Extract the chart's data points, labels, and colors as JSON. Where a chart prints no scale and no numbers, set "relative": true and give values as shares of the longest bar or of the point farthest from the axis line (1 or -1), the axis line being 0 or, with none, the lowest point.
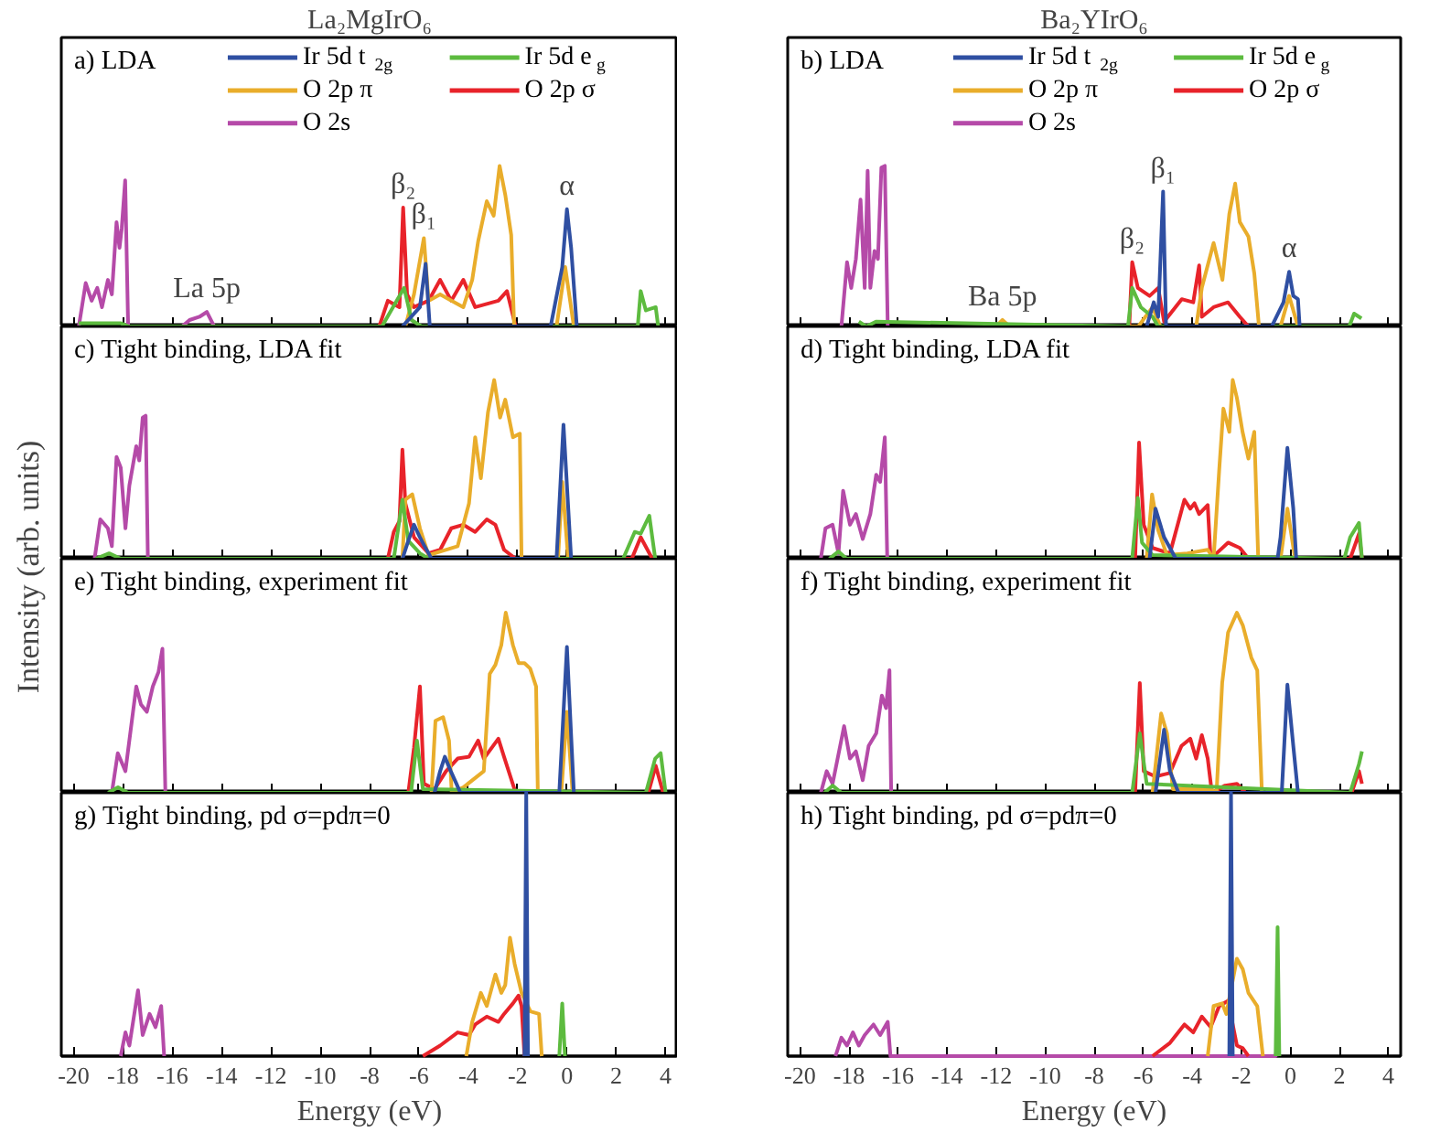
{
  "chart_data": [
    {
      "type": "line",
      "title": "La₂MgIrO₆",
      "subtitle": "a) LDA",
      "relative": true,
      "xlim": [
        -20.5,
        4.5
      ],
      "xticks": [
        -20,
        -18,
        -16,
        -14,
        -12,
        -10,
        -8,
        -6,
        -4,
        -2,
        0,
        2,
        4
      ],
      "tick_labels": false,
      "legend": "top",
      "annotations": [
        {
          "text": "β₂",
          "x": -6.64,
          "y": 0.74
        },
        {
          "text": "β₁",
          "x": -5.8,
          "y": 0.55
        },
        {
          "text": "α",
          "x": 0.0,
          "y": 0.73
        },
        {
          "text": "La 5p",
          "x": -14.6,
          "y": 0.09
        }
      ],
      "series": [
        {
          "name": "Ir 5d t$_{2g}$",
          "color": "#2f4fa2",
          "x": [
            -6.67,
            -5.96,
            -5.73,
            -5.56,
            -0.66,
            -0.19,
            0.0,
            0.17,
            0.4
          ],
          "values": [
            0,
            0.12,
            0.39,
            0,
            0,
            0.37,
            0.73,
            0.49,
            0
          ]
        },
        {
          "name": "Ir 5d e$_{g}$",
          "color": "#5dbb3f",
          "x": [
            -19.8,
            -18.1,
            -17.76,
            -7.5,
            -6.6,
            -6.3,
            -5.9,
            2.87,
            2.99,
            3.2,
            3.6,
            3.7
          ],
          "values": [
            0.02,
            0.02,
            0,
            0,
            0.24,
            0.04,
            0,
            0,
            0.22,
            0.1,
            0.12,
            0
          ]
        },
        {
          "name": "O 2p π",
          "color": "#e9ad2b",
          "x": [
            -6.55,
            -6.2,
            -5.8,
            -5.61,
            -5.14,
            -4.2,
            -3.84,
            -3.6,
            -3.25,
            -2.97,
            -2.73,
            -2.5,
            -2.26,
            -2.14,
            -0.42,
            -0.07,
            0.28
          ],
          "values": [
            0,
            0.2,
            0.55,
            0.16,
            0.2,
            0.12,
            0.29,
            0.53,
            0.78,
            0.69,
            1.0,
            0.82,
            0.57,
            0,
            0,
            0.37,
            0
          ]
        },
        {
          "name": "O 2p σ",
          "color": "#e8232a",
          "x": [
            -7.61,
            -7.26,
            -6.79,
            -6.64,
            -6.48,
            -6.2,
            -5.61,
            -5.14,
            -4.69,
            -4.2,
            -3.72,
            -2.78,
            -2.43,
            -2.08
          ],
          "values": [
            0,
            0.16,
            0.12,
            0.74,
            0.2,
            0.12,
            0.16,
            0.29,
            0.16,
            0.29,
            0.12,
            0.16,
            0.22,
            0
          ]
        },
        {
          "name": "O 2s",
          "color": "#b54aa8",
          "x": [
            -19.79,
            -19.51,
            -19.27,
            -19.04,
            -18.85,
            -18.61,
            -18.45,
            -18.26,
            -18.14,
            -18.05,
            -17.91,
            -17.79,
            -15.6,
            -15.3,
            -14.9,
            -14.6,
            -14.3
          ],
          "values": [
            0,
            0.27,
            0.16,
            0.24,
            0.12,
            0.29,
            0.2,
            0.65,
            0.49,
            0.61,
            0.91,
            0,
            0,
            0.04,
            0.06,
            0.09,
            0
          ]
        }
      ]
    },
    {
      "type": "line",
      "title": "Ba₂YIrO₆",
      "subtitle": "b) LDA",
      "relative": true,
      "xlim": [
        -20.5,
        4.5
      ],
      "xticks": [
        -20,
        -18,
        -16,
        -14,
        -12,
        -10,
        -8,
        -6,
        -4,
        -2,
        0,
        2,
        4
      ],
      "tick_labels": false,
      "legend": "top",
      "annotations": [
        {
          "text": "β₂",
          "x": -6.45,
          "y": 0.4
        },
        {
          "text": "β₁",
          "x": -5.19,
          "y": 0.84
        },
        {
          "text": "α",
          "x": -0.05,
          "y": 0.34
        },
        {
          "text": "Ba 5p",
          "x": -11.74,
          "y": 0.04
        }
      ],
      "series": [
        {
          "name": "Ir 5d t$_{2g}$",
          "color": "#2f4fa2",
          "x": [
            -5.86,
            -5.57,
            -5.39,
            -5.19,
            -5.07,
            -0.76,
            -0.28,
            -0.05,
            0.12,
            0.31,
            0.38
          ],
          "values": [
            0,
            0.15,
            0.06,
            0.84,
            0,
            0,
            0.15,
            0.34,
            0.19,
            0.17,
            0
          ]
        },
        {
          "name": "Ir 5d e$_{g}$",
          "color": "#5dbb3f",
          "x": [
            -17.6,
            -17.3,
            -16.9,
            -6.62,
            -6.45,
            -6.1,
            -5.62,
            -5.39,
            2.4,
            2.6,
            2.9
          ],
          "values": [
            0.03,
            0,
            0.03,
            0,
            0.24,
            0.12,
            0.06,
            0,
            0,
            0.08,
            0.05
          ]
        },
        {
          "name": "O 2p π",
          "color": "#e9ad2b",
          "x": [
            -12.0,
            -11.74,
            -11.45,
            -6.2,
            -5.62,
            -5.3,
            -3.84,
            -3.61,
            -3.13,
            -2.77,
            -2.49,
            -2.25,
            -2.06,
            -1.71,
            -1.47,
            -1.28,
            -0.4,
            -0.05,
            0.31
          ],
          "values": [
            0,
            0.04,
            0,
            0,
            0.12,
            0,
            0,
            0.24,
            0.52,
            0.29,
            0.7,
            0.89,
            0.65,
            0.56,
            0.33,
            0,
            0,
            0.19,
            0
          ]
        },
        {
          "name": "O 2p σ",
          "color": "#e8232a",
          "x": [
            -6.57,
            -6.45,
            -6.22,
            -5.74,
            -5.39,
            -5.15,
            -4.43,
            -3.96,
            -3.72,
            -3.61,
            -3.13,
            -2.54,
            -2.06,
            -1.71
          ],
          "values": [
            0,
            0.4,
            0.24,
            0.19,
            0.24,
            0.03,
            0.17,
            0.15,
            0.38,
            0.06,
            0.12,
            0.15,
            0.06,
            0
          ]
        },
        {
          "name": "O 2s",
          "color": "#b54aa8",
          "x": [
            -18.31,
            -18.08,
            -17.91,
            -17.72,
            -17.53,
            -17.36,
            -17.24,
            -17.13,
            -16.96,
            -16.82,
            -16.68,
            -16.54,
            -16.42
          ],
          "values": [
            0,
            0.4,
            0.24,
            0.42,
            0.79,
            0.24,
            0.97,
            0.24,
            0.47,
            0.42,
            0.99,
            1.0,
            0
          ]
        }
      ]
    },
    {
      "type": "line",
      "subtitle": "c) Tight binding, LDA fit",
      "ylabel": "Intensity (arb. units)",
      "relative": true,
      "xlim": [
        -20.5,
        4.5
      ],
      "xticks": [
        -20,
        -18,
        -16,
        -14,
        -12,
        -10,
        -8,
        -6,
        -4,
        -2,
        0,
        2,
        4
      ],
      "tick_labels": false,
      "series": [
        {
          "color": "#2f4fa2",
          "x": [
            -6.67,
            -6.43,
            -6.2,
            -5.96,
            -5.77,
            -5.49,
            -0.42,
            -0.14,
            0.17
          ],
          "values": [
            0,
            0.1,
            0.19,
            0.12,
            0.07,
            0,
            0,
            0.75,
            0
          ]
        },
        {
          "color": "#5dbb3f",
          "x": [
            -19.1,
            -18.56,
            -18.09,
            -7.02,
            -6.67,
            -6.43,
            -5.96,
            -5.61,
            2.28,
            2.75,
            2.99,
            3.34,
            3.58
          ],
          "values": [
            0,
            0.03,
            0,
            0,
            0.33,
            0.1,
            0.03,
            0,
            0,
            0.15,
            0.14,
            0.24,
            0
          ]
        },
        {
          "color": "#e9ad2b",
          "x": [
            -6.67,
            -6.55,
            -6.27,
            -5.96,
            -5.61,
            -4.43,
            -3.97,
            -3.72,
            -3.49,
            -3.2,
            -2.95,
            -2.71,
            -2.5,
            -2.19,
            -1.91,
            -1.84,
            -0.36,
            -0.19,
            0.05
          ],
          "values": [
            0,
            0.33,
            0.36,
            0.17,
            0.02,
            0.07,
            0.31,
            0.68,
            0.45,
            0.82,
            1.0,
            0.79,
            0.89,
            0.68,
            0.7,
            0,
            0,
            0.43,
            0
          ]
        },
        {
          "color": "#e8232a",
          "x": [
            -7.26,
            -7.02,
            -6.79,
            -6.67,
            -6.55,
            -6.2,
            -5.61,
            -5.14,
            -4.69,
            -4.2,
            -3.72,
            -3.25,
            -2.9,
            -2.55,
            -2.08,
            2.63,
            2.99,
            3.46
          ],
          "values": [
            0,
            0.15,
            0.21,
            0.61,
            0.31,
            0.12,
            0.03,
            0.05,
            0.17,
            0.19,
            0.15,
            0.22,
            0.19,
            0.05,
            0,
            0,
            0.12,
            0
          ]
        },
        {
          "color": "#b54aa8",
          "x": [
            -19.15,
            -18.92,
            -18.61,
            -18.45,
            -18.26,
            -18.09,
            -17.9,
            -17.74,
            -17.46,
            -17.34,
            -17.2,
            -17.08,
            -16.99
          ],
          "values": [
            0,
            0.22,
            0.17,
            0.07,
            0.57,
            0.51,
            0.17,
            0.41,
            0.63,
            0.55,
            0.79,
            0.8,
            0
          ]
        }
      ]
    },
    {
      "type": "line",
      "subtitle": "d) Tight binding, LDA fit",
      "relative": true,
      "xlim": [
        -20.5,
        4.5
      ],
      "xticks": [
        -20,
        -18,
        -16,
        -14,
        -12,
        -10,
        -8,
        -6,
        -4,
        -2,
        0,
        2,
        4
      ],
      "tick_labels": false,
      "series": [
        {
          "color": "#2f4fa2",
          "x": [
            -5.74,
            -5.5,
            -5.15,
            -4.67,
            -0.52,
            -0.4,
            -0.12,
            0.12,
            0.24
          ],
          "values": [
            0,
            0.28,
            0.12,
            0,
            0,
            0.12,
            0.62,
            0.28,
            0
          ]
        },
        {
          "color": "#5dbb3f",
          "x": [
            -18.8,
            -18.43,
            -18.1,
            -6.45,
            -6.22,
            -6.05,
            -5.62,
            2.2,
            2.44,
            2.8,
            2.92
          ],
          "values": [
            0,
            0.04,
            0,
            0,
            0.34,
            0.09,
            0.02,
            0,
            0.12,
            0.2,
            0
          ]
        },
        {
          "color": "#e9ad2b",
          "x": [
            -5.86,
            -5.64,
            -5.39,
            -5.03,
            -4.2,
            -3.37,
            -3.13,
            -2.9,
            -2.73,
            -2.49,
            -2.35,
            -2.18,
            -1.95,
            -1.71,
            -1.47,
            -1.31,
            -0.4,
            -0.12,
            0.19
          ],
          "values": [
            0,
            0.36,
            0.16,
            0.02,
            0.03,
            0.05,
            0,
            0.5,
            0.84,
            0.71,
            1.0,
            0.9,
            0.71,
            0.56,
            0.71,
            0,
            0,
            0.28,
            0
          ]
        },
        {
          "color": "#e8232a",
          "x": [
            -6.33,
            -6.17,
            -5.98,
            -5.62,
            -4.91,
            -4.32,
            -4.08,
            -3.91,
            -3.72,
            -3.37,
            -3.25,
            -3.01,
            -2.54,
            -2.06,
            -1.71,
            2.44,
            2.8,
            2.92
          ],
          "values": [
            0,
            0.65,
            0.19,
            0.06,
            0.03,
            0.33,
            0.28,
            0.31,
            0.25,
            0.3,
            0,
            0.03,
            0.09,
            0.06,
            0,
            0,
            0.14,
            0
          ]
        },
        {
          "color": "#b54aa8",
          "x": [
            -19.15,
            -18.96,
            -18.67,
            -18.43,
            -18.24,
            -17.96,
            -17.72,
            -17.44,
            -17.13,
            -16.89,
            -16.73,
            -16.54,
            -16.44
          ],
          "values": [
            0,
            0.17,
            0.19,
            0.03,
            0.38,
            0.19,
            0.25,
            0.11,
            0.25,
            0.47,
            0.43,
            0.68,
            0
          ]
        }
      ]
    },
    {
      "type": "line",
      "subtitle": "e) Tight binding, experiment fit",
      "relative": true,
      "xlim": [
        -20.5,
        4.5
      ],
      "xticks": [
        -20,
        -18,
        -16,
        -14,
        -12,
        -10,
        -8,
        -6,
        -4,
        -2,
        0,
        2,
        4
      ],
      "tick_labels": false,
      "series": [
        {
          "color": "#2f4fa2",
          "x": [
            -5.37,
            -5.14,
            -4.95,
            -4.71,
            -4.48,
            -4.32,
            -0.31,
            0.0,
            0.28
          ],
          "values": [
            0,
            0.12,
            0.2,
            0.12,
            0.05,
            0,
            0,
            0.81,
            0
          ]
        },
        {
          "color": "#5dbb3f",
          "x": [
            -18.6,
            -18.2,
            -17.8,
            -6.32,
            -6.08,
            -5.84,
            3.2,
            3.58,
            3.8,
            4.0
          ],
          "values": [
            0,
            0.03,
            0,
            0,
            0.29,
            0.02,
            0,
            0.19,
            0.22,
            0
          ]
        },
        {
          "color": "#e9ad2b",
          "x": [
            -5.49,
            -5.33,
            -5.02,
            -4.78,
            -4.67,
            -4.2,
            -3.37,
            -3.13,
            -2.9,
            -2.66,
            -2.48,
            -2.19,
            -1.96,
            -1.72,
            -1.49,
            -1.25,
            -1.18,
            -0.23,
            0.0,
            0.23
          ],
          "values": [
            0,
            0.4,
            0.42,
            0.29,
            0,
            0.03,
            0.12,
            0.66,
            0.71,
            0.82,
            1.0,
            0.82,
            0.72,
            0.72,
            0.69,
            0.59,
            0,
            0,
            0.45,
            0
          ]
        },
        {
          "color": "#e8232a",
          "x": [
            -6.43,
            -6.2,
            -5.96,
            -5.8,
            -5.37,
            -4.9,
            -4.43,
            -3.97,
            -3.6,
            -3.37,
            -2.78,
            -2.55,
            -2.08,
            3.3,
            3.6,
            3.9
          ],
          "values": [
            0,
            0.25,
            0.59,
            0.05,
            0.02,
            0.12,
            0.19,
            0.2,
            0.29,
            0.19,
            0.3,
            0.2,
            0,
            0,
            0.15,
            0
          ]
        },
        {
          "color": "#b54aa8",
          "x": [
            -18.45,
            -18.21,
            -17.9,
            -17.62,
            -17.46,
            -17.27,
            -17.03,
            -16.79,
            -16.56,
            -16.4,
            -16.28
          ],
          "values": [
            0,
            0.22,
            0.12,
            0.42,
            0.59,
            0.49,
            0.45,
            0.59,
            0.67,
            0.8,
            0
          ]
        }
      ]
    },
    {
      "type": "line",
      "subtitle": "f) Tight binding, experiment fit",
      "relative": true,
      "xlim": [
        -20.5,
        4.5
      ],
      "xticks": [
        -20,
        -18,
        -16,
        -14,
        -12,
        -10,
        -8,
        -6,
        -4,
        -2,
        0,
        2,
        4
      ],
      "tick_labels": false,
      "series": [
        {
          "color": "#2f4fa2",
          "x": [
            -5.5,
            -5.15,
            -4.91,
            -4.56,
            -0.35,
            -0.12,
            0.12,
            0.31
          ],
          "values": [
            0,
            0.35,
            0.12,
            0,
            0,
            0.6,
            0.26,
            0
          ]
        },
        {
          "color": "#5dbb3f",
          "x": [
            -19.0,
            -18.67,
            -18.31,
            -6.45,
            -6.14,
            -5.86,
            2.44,
            2.8,
            2.92
          ],
          "values": [
            0,
            0.04,
            0,
            0,
            0.33,
            0.05,
            0,
            0.16,
            0.23
          ]
        },
        {
          "color": "#e9ad2b",
          "x": [
            -5.62,
            -5.27,
            -5.03,
            -4.79,
            -3.25,
            -3.01,
            -2.78,
            -2.54,
            -2.18,
            -1.94,
            -1.59,
            -1.35,
            -1.16
          ],
          "values": [
            0,
            0.44,
            0.33,
            0.02,
            0.02,
            0,
            0.61,
            0.89,
            1.0,
            0.93,
            0.75,
            0.68,
            0
          ]
        },
        {
          "color": "#e8232a",
          "x": [
            -6.33,
            -6.14,
            -5.98,
            -5.5,
            -4.91,
            -4.44,
            -4.08,
            -3.84,
            -3.61,
            -3.37,
            -3.2,
            -2.66,
            -2.18,
            -1.83,
            2.5,
            2.8,
            2.92
          ],
          "values": [
            0,
            0.61,
            0.12,
            0.09,
            0.11,
            0.26,
            0.3,
            0.19,
            0.32,
            0.19,
            0,
            0.04,
            0.05,
            0,
            0,
            0.12,
            0.05
          ]
        },
        {
          "color": "#b54aa8",
          "x": [
            -19.15,
            -18.91,
            -18.67,
            -18.2,
            -17.96,
            -17.72,
            -17.44,
            -17.2,
            -16.89,
            -16.66,
            -16.49,
            -16.35,
            -16.28
          ],
          "values": [
            0,
            0.12,
            0.05,
            0.37,
            0.19,
            0.23,
            0.07,
            0.26,
            0.33,
            0.54,
            0.47,
            0.68,
            0
          ]
        }
      ]
    },
    {
      "type": "line",
      "subtitle": "g) Tight binding, pd σ=pdπ=0",
      "xlabel": "Energy (eV)",
      "relative": true,
      "xlim": [
        -20.5,
        4.5
      ],
      "xticks": [
        -20,
        -18,
        -16,
        -14,
        -12,
        -10,
        -8,
        -6,
        -4,
        -2,
        0,
        2,
        4
      ],
      "tick_labels": "x",
      "series": [
        {
          "color": "#2f4fa2",
          "x": [
            -1.72,
            -1.65,
            -1.58
          ],
          "values": [
            0,
            1,
            0
          ]
        },
        {
          "color": "#5dbb3f",
          "x": [
            -0.31,
            -0.19,
            -0.08
          ],
          "values": [
            0,
            0.2,
            0
          ]
        },
        {
          "color": "#e9ad2b",
          "x": [
            -4.08,
            -3.84,
            -3.49,
            -3.25,
            -2.9,
            -2.66,
            -2.5,
            -2.31,
            -2.12,
            -1.84,
            -1.48,
            -1.13,
            -1.02
          ],
          "values": [
            0,
            0.13,
            0.24,
            0.19,
            0.31,
            0.24,
            0.27,
            0.45,
            0.35,
            0.24,
            0.17,
            0.16,
            0
          ]
        },
        {
          "color": "#e8232a",
          "x": [
            -5.84,
            -5.14,
            -4.43,
            -3.97,
            -3.72,
            -3.25,
            -2.78,
            -2.55,
            -2.19,
            -1.96,
            -1.84,
            -1.72
          ],
          "values": [
            0,
            0.04,
            0.09,
            0.08,
            0.12,
            0.15,
            0.13,
            0.16,
            0.2,
            0.23,
            0.19,
            0
          ]
        },
        {
          "color": "#b54aa8",
          "x": [
            -18.09,
            -17.9,
            -17.74,
            -17.39,
            -17.2,
            -16.92,
            -16.68,
            -16.45,
            -16.33
          ],
          "values": [
            0,
            0.09,
            0.04,
            0.25,
            0.08,
            0.16,
            0.11,
            0.19,
            0
          ]
        }
      ]
    },
    {
      "type": "line",
      "subtitle": "h) Tight binding, pd σ=pdπ=0",
      "xlabel": "Energy (eV)",
      "relative": true,
      "xlim": [
        -20.5,
        4.5
      ],
      "xticks": [
        -20,
        -18,
        -16,
        -14,
        -12,
        -10,
        -8,
        -6,
        -4,
        -2,
        0,
        2,
        4
      ],
      "tick_labels": "x",
      "series": [
        {
          "color": "#2f4fa2",
          "x": [
            -2.49,
            -2.42,
            -2.35
          ],
          "values": [
            0,
            1,
            0
          ]
        },
        {
          "color": "#5dbb3f",
          "x": [
            -0.6,
            -0.52,
            -0.45
          ],
          "values": [
            0,
            0.49,
            0
          ]
        },
        {
          "color": "#e9ad2b",
          "x": [
            -3.37,
            -3.13,
            -2.78,
            -2.61,
            -2.18,
            -1.94,
            -1.71,
            -1.35,
            -1.12
          ],
          "values": [
            0,
            0.19,
            0.2,
            0.16,
            0.37,
            0.33,
            0.24,
            0.19,
            0
          ]
        },
        {
          "color": "#e8232a",
          "x": [
            -5.62,
            -4.91,
            -4.32,
            -3.96,
            -3.61,
            -3.25,
            -2.9,
            -2.54,
            -2.18,
            -1.94,
            -1.71
          ],
          "values": [
            0,
            0.05,
            0.12,
            0.09,
            0.15,
            0.11,
            0.19,
            0.21,
            0.04,
            0.03,
            0
          ]
        },
        {
          "color": "#b54aa8",
          "x": [
            -18.55,
            -18.31,
            -18.08,
            -17.84,
            -17.6,
            -17.36,
            -17.0,
            -16.73,
            -16.42,
            -16.31,
            -0.6,
            -0.52,
            -0.45
          ],
          "values": [
            0,
            0.07,
            0.04,
            0.09,
            0.04,
            0.08,
            0.12,
            0.08,
            0.13,
            0,
            0,
            0.05,
            0
          ]
        }
      ]
    }
  ]
}
